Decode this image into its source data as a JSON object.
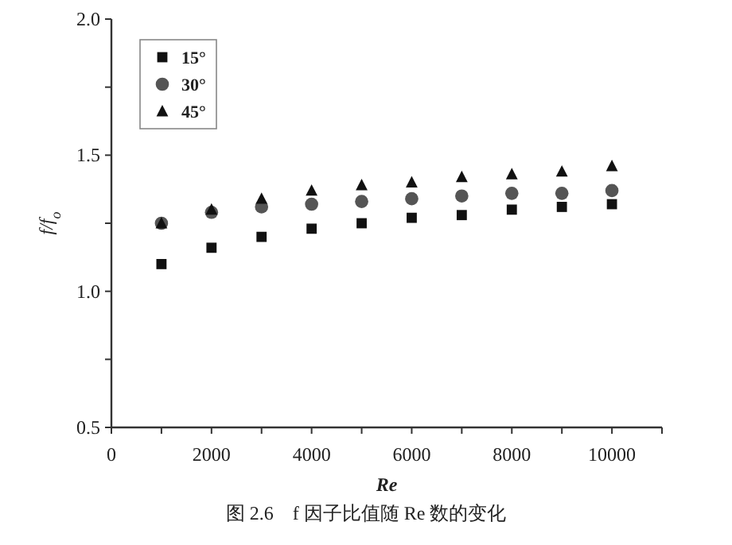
{
  "chart_data": {
    "type": "scatter",
    "xlabel": "Re",
    "ylabel": "f/f$_{o}$",
    "x": [
      1000,
      2000,
      3000,
      4000,
      5000,
      6000,
      7000,
      8000,
      9000,
      10000
    ],
    "series": [
      {
        "name": "15°",
        "color": "#111111",
        "marker": "square",
        "values": [
          1.1,
          1.16,
          1.2,
          1.23,
          1.25,
          1.27,
          1.28,
          1.3,
          1.31,
          1.32
        ]
      },
      {
        "name": "30°",
        "color": "#555555",
        "marker": "circle",
        "values": [
          1.25,
          1.29,
          1.31,
          1.32,
          1.33,
          1.34,
          1.35,
          1.36,
          1.36,
          1.37
        ]
      },
      {
        "name": "45°",
        "color": "#111111",
        "marker": "triangle",
        "values": [
          1.25,
          1.3,
          1.34,
          1.37,
          1.39,
          1.4,
          1.42,
          1.43,
          1.44,
          1.46
        ]
      }
    ],
    "xlim": [
      0,
      11000
    ],
    "xticks": [
      0,
      {
        "value": 1000,
        "label": null
      },
      2000,
      {
        "value": 3000,
        "label": null
      },
      4000,
      {
        "value": 5000,
        "label": null
      },
      6000,
      {
        "value": 7000,
        "label": null
      },
      8000,
      {
        "value": 9000,
        "label": null
      },
      10000,
      {
        "value": 11000,
        "label": null
      }
    ],
    "ylim": [
      0.5,
      2.0
    ],
    "yticks": [
      {
        "value": 0.5,
        "label": "0.5"
      },
      {
        "value": 0.75,
        "label": null
      },
      {
        "value": 1.0,
        "label": "1.0"
      },
      {
        "value": 1.25,
        "label": null
      },
      {
        "value": 1.5,
        "label": "1.5"
      },
      {
        "value": 1.75,
        "label": null
      },
      {
        "value": 2.0,
        "label": "2.0"
      }
    ],
    "grid": false,
    "legend": "top left",
    "annotations": [
      "图 2.6　f 因子比值随 Re 数的变化"
    ]
  }
}
